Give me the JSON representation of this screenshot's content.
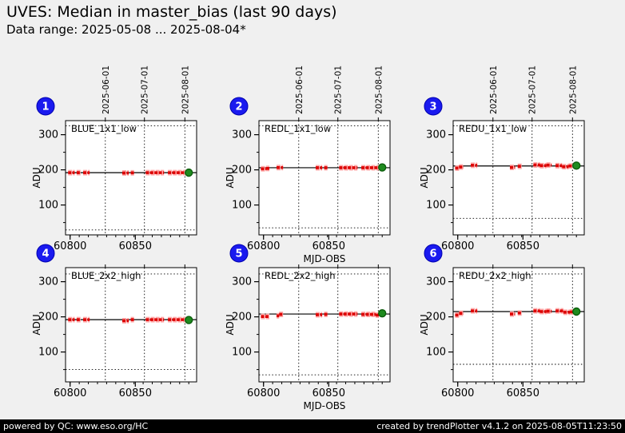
{
  "header": {
    "title": "UVES: Median in master_bias (last 90 days)",
    "subtitle": "Data range: 2025-05-08 ... 2025-08-04*"
  },
  "footer": {
    "left": "powered by QC: www.eso.org/HC",
    "right": "created by trendPlotter v4.1.2 on 2025-08-05T11:23:50"
  },
  "colors": {
    "background": "#f0f0f0",
    "plot_bg": "#ffffff",
    "axis": "#000000",
    "marker": "#dd0000",
    "marker_halo": "#ffaaaa",
    "last_point": "#1f8b1f",
    "last_point_edge": "#0b5d0b",
    "badge": "#1a1aef",
    "badge_text": "#ffffff",
    "footer_bg": "#000000",
    "footer_text": "#ffffff"
  },
  "chart_data": {
    "type": "scatter",
    "x_axis_label": "MJD-OBS",
    "y_axis_label": "ADU",
    "x_range": [
      60796.5,
      60897
    ],
    "y_range": [
      15,
      340
    ],
    "x_major_ticks": [
      60800,
      60850
    ],
    "x_major_tick_labels": [
      "60800",
      "60850"
    ],
    "x_minor_tick_step": 7,
    "y_major_ticks": [
      100,
      200,
      300
    ],
    "y_major_tick_labels": [
      "100",
      "200",
      "300"
    ],
    "y_minor_ticks": [
      50,
      150,
      250
    ],
    "grid": "dotted vertical lines at month boundaries, dotted horizontal QC threshold lines",
    "legend": "none",
    "date_gridlines": [
      {
        "mjd": 60827,
        "label": "2025-06-01"
      },
      {
        "mjd": 60857,
        "label": "2025-07-01"
      },
      {
        "mjd": 60888,
        "label": "2025-08-01"
      }
    ],
    "plots": [
      {
        "badge": "1",
        "title": "BLUE_1x1_low",
        "row": 0,
        "col": 0,
        "ref_line": 192,
        "thresholds": [
          29,
          325
        ],
        "runs": [
          [
            60798.5,
            60803.5,
            192
          ],
          [
            60805,
            60808,
            192
          ],
          [
            60810,
            60815,
            192
          ],
          [
            60840,
            60845,
            191
          ],
          [
            60846.5,
            60849,
            191.5
          ],
          [
            60858,
            60872,
            192
          ],
          [
            60875,
            60888.5,
            192
          ]
        ],
        "last_point": [
          60891,
          192
        ]
      },
      {
        "badge": "2",
        "title": "REDL_1x1_low",
        "row": 0,
        "col": 1,
        "ref_line": 206,
        "thresholds": [
          35,
          325
        ],
        "runs": [
          [
            60798,
            60802,
            203
          ],
          [
            60802,
            60804.5,
            204
          ],
          [
            60810,
            60815,
            206.5
          ],
          [
            60840,
            60845,
            206
          ],
          [
            60846.5,
            60849,
            206
          ],
          [
            60858,
            60872,
            206
          ],
          [
            60875,
            60888.5,
            206
          ]
        ],
        "last_point": [
          60891,
          207
        ]
      },
      {
        "badge": "3",
        "title": "REDU_1x1_low",
        "row": 0,
        "col": 2,
        "ref_line": 211,
        "thresholds": [
          62,
          325
        ],
        "runs": [
          [
            60798,
            60801,
            205
          ],
          [
            60801,
            60804.5,
            208
          ],
          [
            60810,
            60815,
            213
          ],
          [
            60840,
            60844,
            207
          ],
          [
            60846,
            60849,
            210
          ],
          [
            60858,
            60863,
            214
          ],
          [
            60863,
            60868,
            212
          ],
          [
            60868,
            60872,
            213.5
          ],
          [
            60875,
            60880,
            212
          ],
          [
            60880,
            60885,
            209
          ],
          [
            60885,
            60888.5,
            211
          ]
        ],
        "last_point": [
          60891,
          212
        ]
      },
      {
        "badge": "4",
        "title": "BLUE_2x2_high",
        "row": 1,
        "col": 0,
        "ref_line": 192,
        "thresholds": [
          50,
          322
        ],
        "runs": [
          [
            60798.5,
            60803.5,
            192
          ],
          [
            60805,
            60808,
            192
          ],
          [
            60810,
            60815,
            192
          ],
          [
            60840,
            60845,
            189
          ],
          [
            60846.5,
            60849,
            192
          ],
          [
            60858,
            60872,
            192
          ],
          [
            60875,
            60888.5,
            192
          ]
        ],
        "last_point": [
          60891,
          191
        ]
      },
      {
        "badge": "5",
        "title": "REDL_2x2_high",
        "row": 1,
        "col": 1,
        "ref_line": 208,
        "thresholds": [
          35,
          322
        ],
        "runs": [
          [
            60798,
            60804.5,
            201
          ],
          [
            60810,
            60812,
            203
          ],
          [
            60812,
            60815,
            207
          ],
          [
            60840,
            60845,
            206
          ],
          [
            60846.5,
            60849,
            207
          ],
          [
            60858,
            60872,
            208
          ],
          [
            60875,
            60886,
            207
          ],
          [
            60886,
            60888.5,
            205
          ]
        ],
        "last_point": [
          60891,
          210
        ]
      },
      {
        "badge": "6",
        "title": "REDU_2x2_high",
        "row": 1,
        "col": 2,
        "ref_line": 215,
        "thresholds": [
          65,
          322
        ],
        "runs": [
          [
            60798,
            60801,
            205
          ],
          [
            60801,
            60804.5,
            210
          ],
          [
            60810,
            60815,
            217
          ],
          [
            60840,
            60844,
            208
          ],
          [
            60846,
            60849,
            211
          ],
          [
            60858,
            60863,
            217
          ],
          [
            60863,
            60868,
            215
          ],
          [
            60868,
            60872,
            216
          ],
          [
            60875,
            60881,
            217
          ],
          [
            60881,
            60886,
            213
          ],
          [
            60886,
            60888.5,
            214
          ]
        ],
        "last_point": [
          60891,
          215
        ]
      }
    ]
  }
}
